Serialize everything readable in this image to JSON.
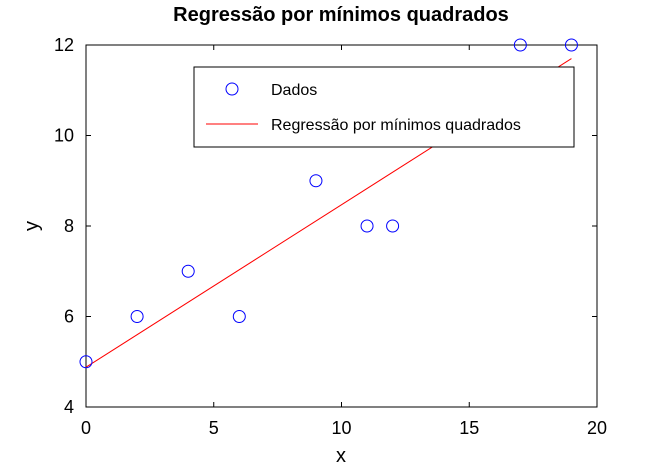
{
  "chart_data": {
    "type": "scatter",
    "title": "Regressão por mínimos quadrados",
    "xlabel": "x",
    "ylabel": "y",
    "xlim": [
      0,
      20
    ],
    "ylim": [
      4,
      12
    ],
    "xticks": [
      0,
      5,
      10,
      15,
      20
    ],
    "yticks": [
      4,
      6,
      8,
      10,
      12
    ],
    "grid": false,
    "legend_position": "top-right",
    "series": [
      {
        "name": "Dados",
        "kind": "scatter",
        "marker": "circle",
        "color": "#0000ff",
        "x": [
          0,
          2,
          4,
          6,
          9,
          11,
          12,
          17,
          19
        ],
        "y": [
          5,
          6,
          7,
          6,
          9,
          8,
          8,
          12,
          12
        ]
      },
      {
        "name": "Regressão por mínimos quadrados",
        "kind": "line",
        "color": "#ff0000",
        "x": [
          0,
          19
        ],
        "y": [
          4.88,
          11.7
        ]
      }
    ]
  }
}
